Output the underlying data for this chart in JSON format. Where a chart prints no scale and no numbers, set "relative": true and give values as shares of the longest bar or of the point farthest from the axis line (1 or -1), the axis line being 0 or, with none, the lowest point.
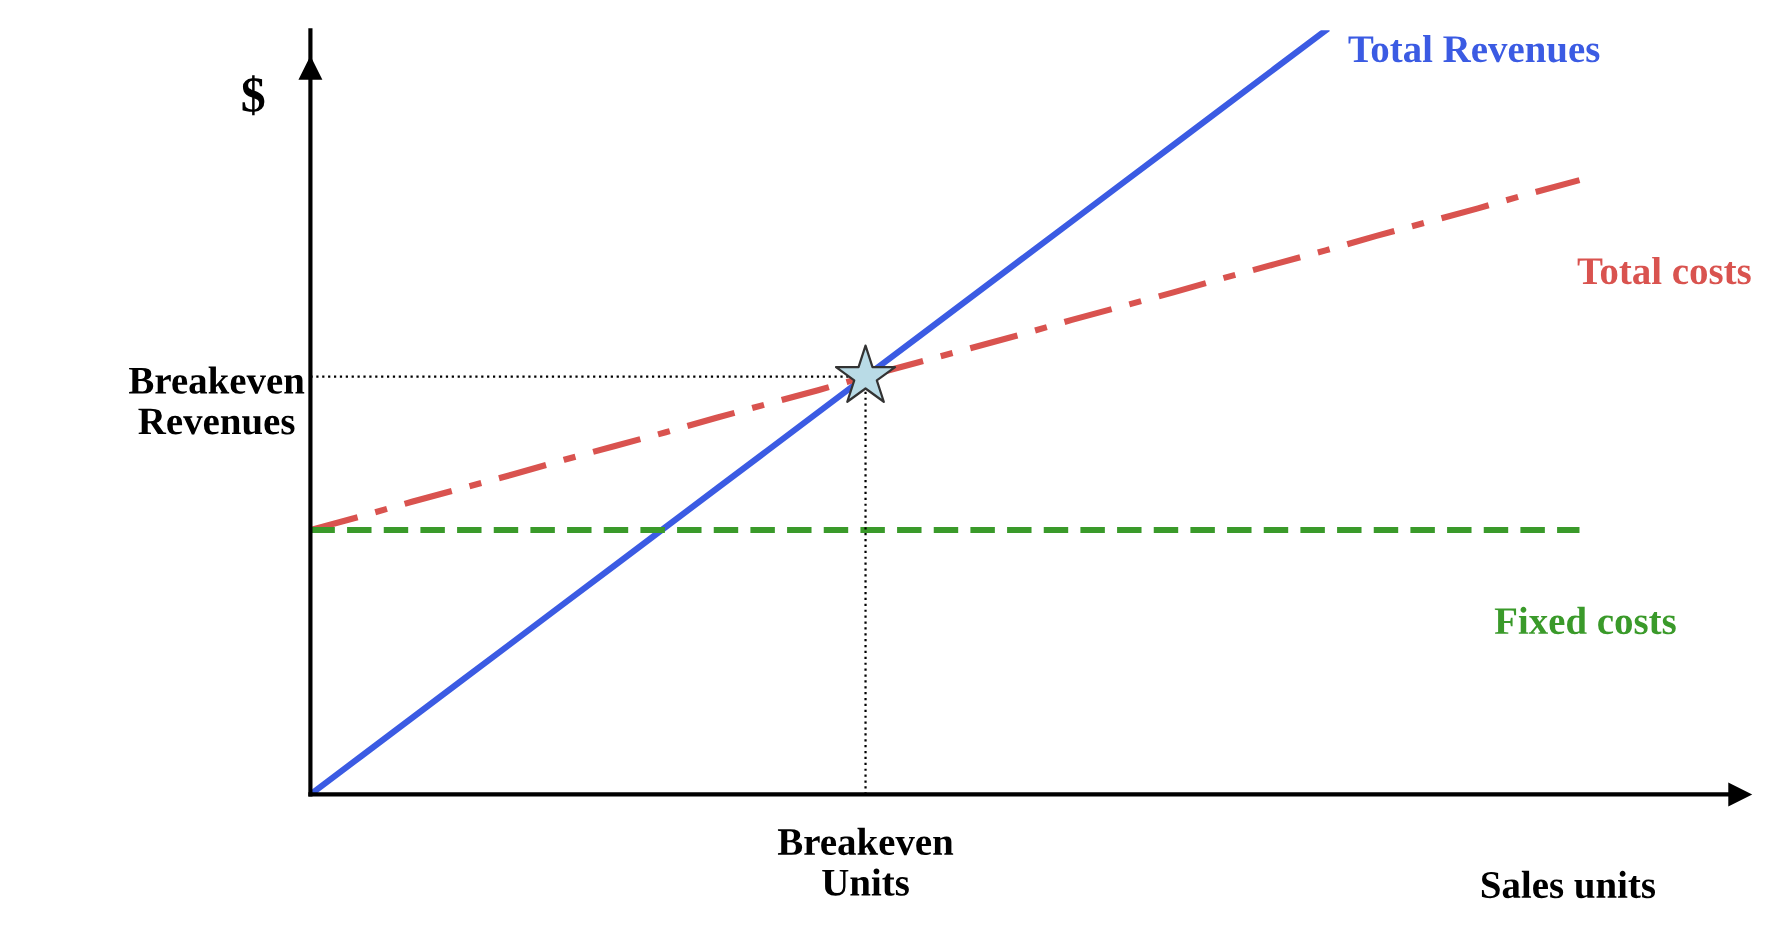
{
  "chart_data": {
    "type": "line",
    "relative": true,
    "ylabel": "$",
    "xlabel": "Sales units",
    "legend": false,
    "categories": [
      null,
      null,
      null,
      null,
      null,
      null,
      null,
      null,
      null,
      null,
      null,
      null,
      null,
      null,
      null,
      null,
      null,
      null,
      null,
      null,
      null,
      null,
      null,
      null,
      null,
      null
    ],
    "series": [
      {
        "name": "Total Revenues",
        "color": "#3b5be3",
        "line_style": "solid",
        "values": [
          0,
          0.05,
          0.1,
          0.15,
          0.2,
          0.25,
          0.3,
          0.35,
          0.4,
          0.45,
          0.5,
          0.55,
          0.6,
          0.65,
          0.7,
          0.75,
          0.8,
          0.85,
          0.9,
          0.95,
          1.0,
          null,
          null,
          null,
          null,
          null
        ]
      },
      {
        "name": "Total costs",
        "color": "#d9534f",
        "line_style": "dashdot",
        "values": [
          0.346,
          0.364,
          0.383,
          0.401,
          0.419,
          0.438,
          0.456,
          0.474,
          0.493,
          0.511,
          0.529,
          0.548,
          0.566,
          0.584,
          0.602,
          0.621,
          0.639,
          0.657,
          0.676,
          0.694,
          0.712,
          0.731,
          0.749,
          0.767,
          0.786,
          0.804
        ]
      },
      {
        "name": "Fixed costs",
        "color": "#3a9a2a",
        "line_style": "dashed",
        "values": [
          0.346,
          0.346,
          0.346,
          0.346,
          0.346,
          0.346,
          0.346,
          0.346,
          0.346,
          0.346,
          0.346,
          0.346,
          0.346,
          0.346,
          0.346,
          0.346,
          0.346,
          0.346,
          0.346,
          0.346,
          0.346,
          0.346,
          0.346,
          0.346,
          0.346,
          0.346
        ]
      }
    ],
    "annotations": [
      "Breakeven\nRevenues",
      "Breakeven\nUnits"
    ]
  }
}
